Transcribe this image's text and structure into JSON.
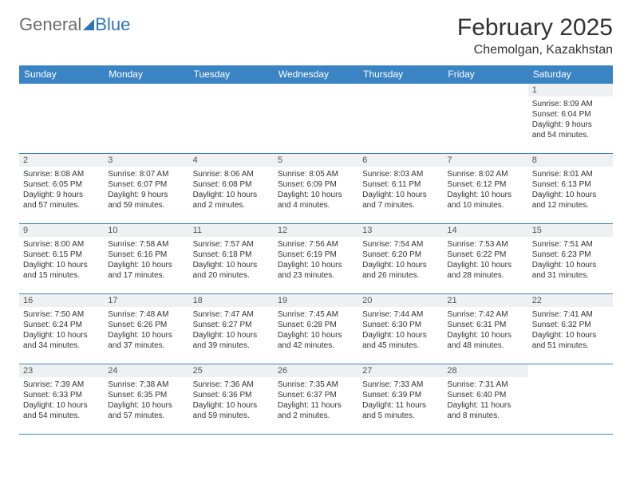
{
  "logo": {
    "part1": "General",
    "part2": "Blue"
  },
  "title": "February 2025",
  "location": "Chemolgan, Kazakhstan",
  "colors": {
    "header_bg": "#3b84c4",
    "header_text": "#ffffff",
    "rule": "#3b84c4",
    "daynum_bg": "#eef0f1",
    "logo_gray": "#6b6b6b",
    "logo_blue": "#2d74b7",
    "body_text": "#333333"
  },
  "column_headers": [
    "Sunday",
    "Monday",
    "Tuesday",
    "Wednesday",
    "Thursday",
    "Friday",
    "Saturday"
  ],
  "weeks": [
    [
      null,
      null,
      null,
      null,
      null,
      null,
      {
        "n": "1",
        "sr": "Sunrise: 8:09 AM",
        "ss": "Sunset: 6:04 PM",
        "dl1": "Daylight: 9 hours",
        "dl2": "and 54 minutes."
      }
    ],
    [
      {
        "n": "2",
        "sr": "Sunrise: 8:08 AM",
        "ss": "Sunset: 6:05 PM",
        "dl1": "Daylight: 9 hours",
        "dl2": "and 57 minutes."
      },
      {
        "n": "3",
        "sr": "Sunrise: 8:07 AM",
        "ss": "Sunset: 6:07 PM",
        "dl1": "Daylight: 9 hours",
        "dl2": "and 59 minutes."
      },
      {
        "n": "4",
        "sr": "Sunrise: 8:06 AM",
        "ss": "Sunset: 6:08 PM",
        "dl1": "Daylight: 10 hours",
        "dl2": "and 2 minutes."
      },
      {
        "n": "5",
        "sr": "Sunrise: 8:05 AM",
        "ss": "Sunset: 6:09 PM",
        "dl1": "Daylight: 10 hours",
        "dl2": "and 4 minutes."
      },
      {
        "n": "6",
        "sr": "Sunrise: 8:03 AM",
        "ss": "Sunset: 6:11 PM",
        "dl1": "Daylight: 10 hours",
        "dl2": "and 7 minutes."
      },
      {
        "n": "7",
        "sr": "Sunrise: 8:02 AM",
        "ss": "Sunset: 6:12 PM",
        "dl1": "Daylight: 10 hours",
        "dl2": "and 10 minutes."
      },
      {
        "n": "8",
        "sr": "Sunrise: 8:01 AM",
        "ss": "Sunset: 6:13 PM",
        "dl1": "Daylight: 10 hours",
        "dl2": "and 12 minutes."
      }
    ],
    [
      {
        "n": "9",
        "sr": "Sunrise: 8:00 AM",
        "ss": "Sunset: 6:15 PM",
        "dl1": "Daylight: 10 hours",
        "dl2": "and 15 minutes."
      },
      {
        "n": "10",
        "sr": "Sunrise: 7:58 AM",
        "ss": "Sunset: 6:16 PM",
        "dl1": "Daylight: 10 hours",
        "dl2": "and 17 minutes."
      },
      {
        "n": "11",
        "sr": "Sunrise: 7:57 AM",
        "ss": "Sunset: 6:18 PM",
        "dl1": "Daylight: 10 hours",
        "dl2": "and 20 minutes."
      },
      {
        "n": "12",
        "sr": "Sunrise: 7:56 AM",
        "ss": "Sunset: 6:19 PM",
        "dl1": "Daylight: 10 hours",
        "dl2": "and 23 minutes."
      },
      {
        "n": "13",
        "sr": "Sunrise: 7:54 AM",
        "ss": "Sunset: 6:20 PM",
        "dl1": "Daylight: 10 hours",
        "dl2": "and 26 minutes."
      },
      {
        "n": "14",
        "sr": "Sunrise: 7:53 AM",
        "ss": "Sunset: 6:22 PM",
        "dl1": "Daylight: 10 hours",
        "dl2": "and 28 minutes."
      },
      {
        "n": "15",
        "sr": "Sunrise: 7:51 AM",
        "ss": "Sunset: 6:23 PM",
        "dl1": "Daylight: 10 hours",
        "dl2": "and 31 minutes."
      }
    ],
    [
      {
        "n": "16",
        "sr": "Sunrise: 7:50 AM",
        "ss": "Sunset: 6:24 PM",
        "dl1": "Daylight: 10 hours",
        "dl2": "and 34 minutes."
      },
      {
        "n": "17",
        "sr": "Sunrise: 7:48 AM",
        "ss": "Sunset: 6:26 PM",
        "dl1": "Daylight: 10 hours",
        "dl2": "and 37 minutes."
      },
      {
        "n": "18",
        "sr": "Sunrise: 7:47 AM",
        "ss": "Sunset: 6:27 PM",
        "dl1": "Daylight: 10 hours",
        "dl2": "and 39 minutes."
      },
      {
        "n": "19",
        "sr": "Sunrise: 7:45 AM",
        "ss": "Sunset: 6:28 PM",
        "dl1": "Daylight: 10 hours",
        "dl2": "and 42 minutes."
      },
      {
        "n": "20",
        "sr": "Sunrise: 7:44 AM",
        "ss": "Sunset: 6:30 PM",
        "dl1": "Daylight: 10 hours",
        "dl2": "and 45 minutes."
      },
      {
        "n": "21",
        "sr": "Sunrise: 7:42 AM",
        "ss": "Sunset: 6:31 PM",
        "dl1": "Daylight: 10 hours",
        "dl2": "and 48 minutes."
      },
      {
        "n": "22",
        "sr": "Sunrise: 7:41 AM",
        "ss": "Sunset: 6:32 PM",
        "dl1": "Daylight: 10 hours",
        "dl2": "and 51 minutes."
      }
    ],
    [
      {
        "n": "23",
        "sr": "Sunrise: 7:39 AM",
        "ss": "Sunset: 6:33 PM",
        "dl1": "Daylight: 10 hours",
        "dl2": "and 54 minutes."
      },
      {
        "n": "24",
        "sr": "Sunrise: 7:38 AM",
        "ss": "Sunset: 6:35 PM",
        "dl1": "Daylight: 10 hours",
        "dl2": "and 57 minutes."
      },
      {
        "n": "25",
        "sr": "Sunrise: 7:36 AM",
        "ss": "Sunset: 6:36 PM",
        "dl1": "Daylight: 10 hours",
        "dl2": "and 59 minutes."
      },
      {
        "n": "26",
        "sr": "Sunrise: 7:35 AM",
        "ss": "Sunset: 6:37 PM",
        "dl1": "Daylight: 11 hours",
        "dl2": "and 2 minutes."
      },
      {
        "n": "27",
        "sr": "Sunrise: 7:33 AM",
        "ss": "Sunset: 6:39 PM",
        "dl1": "Daylight: 11 hours",
        "dl2": "and 5 minutes."
      },
      {
        "n": "28",
        "sr": "Sunrise: 7:31 AM",
        "ss": "Sunset: 6:40 PM",
        "dl1": "Daylight: 11 hours",
        "dl2": "and 8 minutes."
      },
      null
    ]
  ]
}
